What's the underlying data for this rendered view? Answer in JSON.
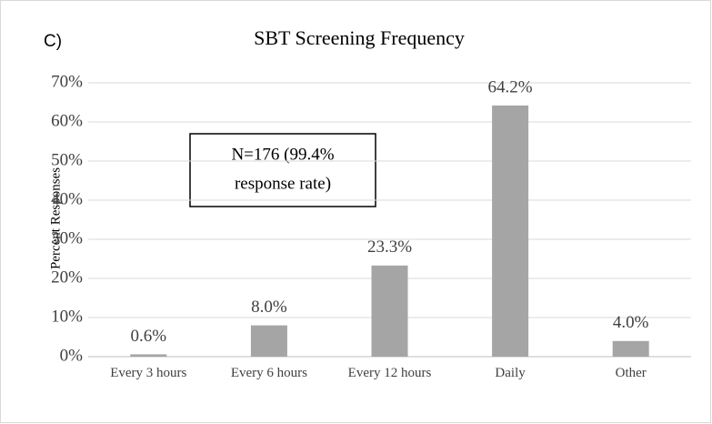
{
  "chart_data": {
    "type": "bar",
    "panel_label": "C)",
    "title": "SBT Screening Frequency",
    "y_label": "Percent Responses",
    "annotation": [
      "N=176 (99.4%",
      "response rate)"
    ],
    "categories": [
      "Every 3 hours",
      "Every 6 hours",
      "Every 12 hours",
      "Daily",
      "Other"
    ],
    "values": [
      0.6,
      8.0,
      23.3,
      64.2,
      4.0
    ],
    "value_labels": [
      "0.6%",
      "8.0%",
      "23.3%",
      "64.2%",
      "4.0%"
    ],
    "color": "#a5a5a5",
    "ylim": [
      0,
      70
    ],
    "yticks": [
      {
        "value": 0,
        "label": "0%"
      },
      {
        "value": 10,
        "label": "10%"
      },
      {
        "value": 20,
        "label": "20%"
      },
      {
        "value": 30,
        "label": "30%"
      },
      {
        "value": 40,
        "label": "40%"
      },
      {
        "value": 50,
        "label": "50%"
      },
      {
        "value": 60,
        "label": "60%"
      },
      {
        "value": 70,
        "label": "70%"
      }
    ],
    "grid": true
  }
}
